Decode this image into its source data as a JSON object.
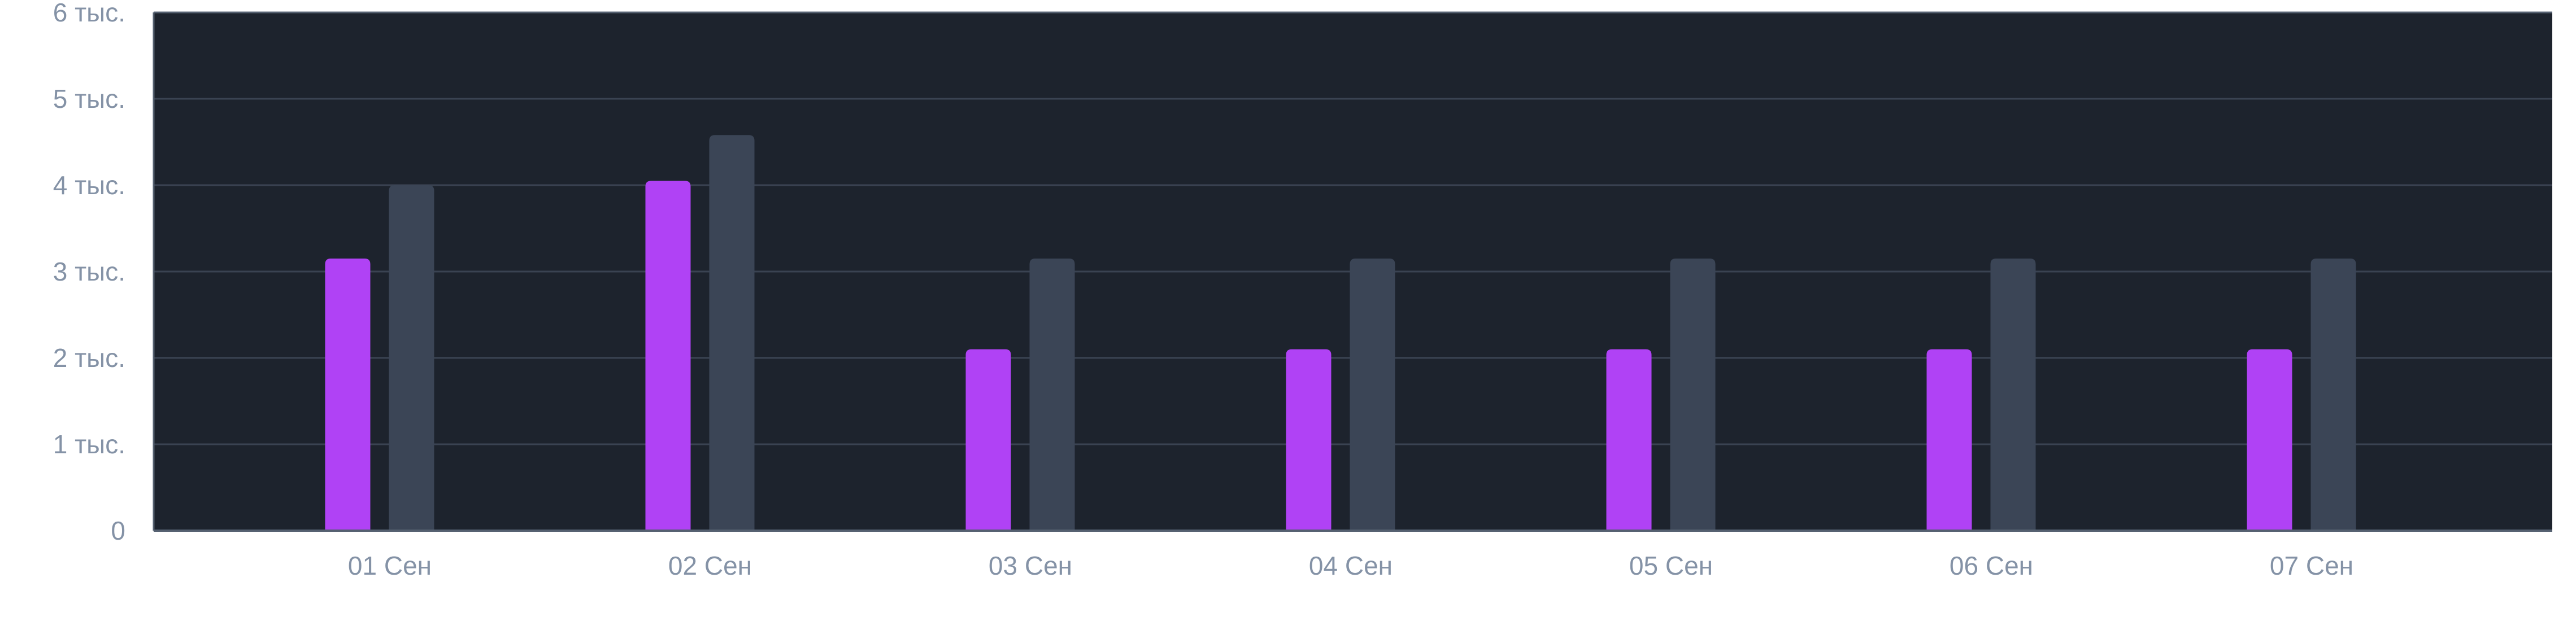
{
  "chart_data": {
    "type": "bar",
    "categories": [
      "01 Сен",
      "02 Сен",
      "03 Сен",
      "04 Сен",
      "05 Сен",
      "06 Сен",
      "07 Сен"
    ],
    "series": [
      {
        "values": [
          3150,
          4050,
          2100,
          2100,
          2100,
          2100,
          2100
        ],
        "color": "#b042f5"
      },
      {
        "values": [
          4000,
          4580,
          3150,
          3150,
          3150,
          3150,
          3150
        ],
        "color": "#3b4556"
      }
    ],
    "y_ticks": [
      {
        "value": 0,
        "label": "0"
      },
      {
        "value": 1000,
        "label": "1 тыс."
      },
      {
        "value": 2000,
        "label": "2 тыс."
      },
      {
        "value": 3000,
        "label": "3 тыс."
      },
      {
        "value": 4000,
        "label": "4 тыс."
      },
      {
        "value": 5000,
        "label": "5 тыс."
      },
      {
        "value": 6000,
        "label": "6 тыс."
      }
    ],
    "ylim": [
      0,
      6000
    ],
    "grid": true,
    "colors": {
      "plot_background": "#1d232d",
      "gridline": "#3a4352",
      "axis_line": "#556070",
      "tick_text": "#8492a6"
    }
  }
}
